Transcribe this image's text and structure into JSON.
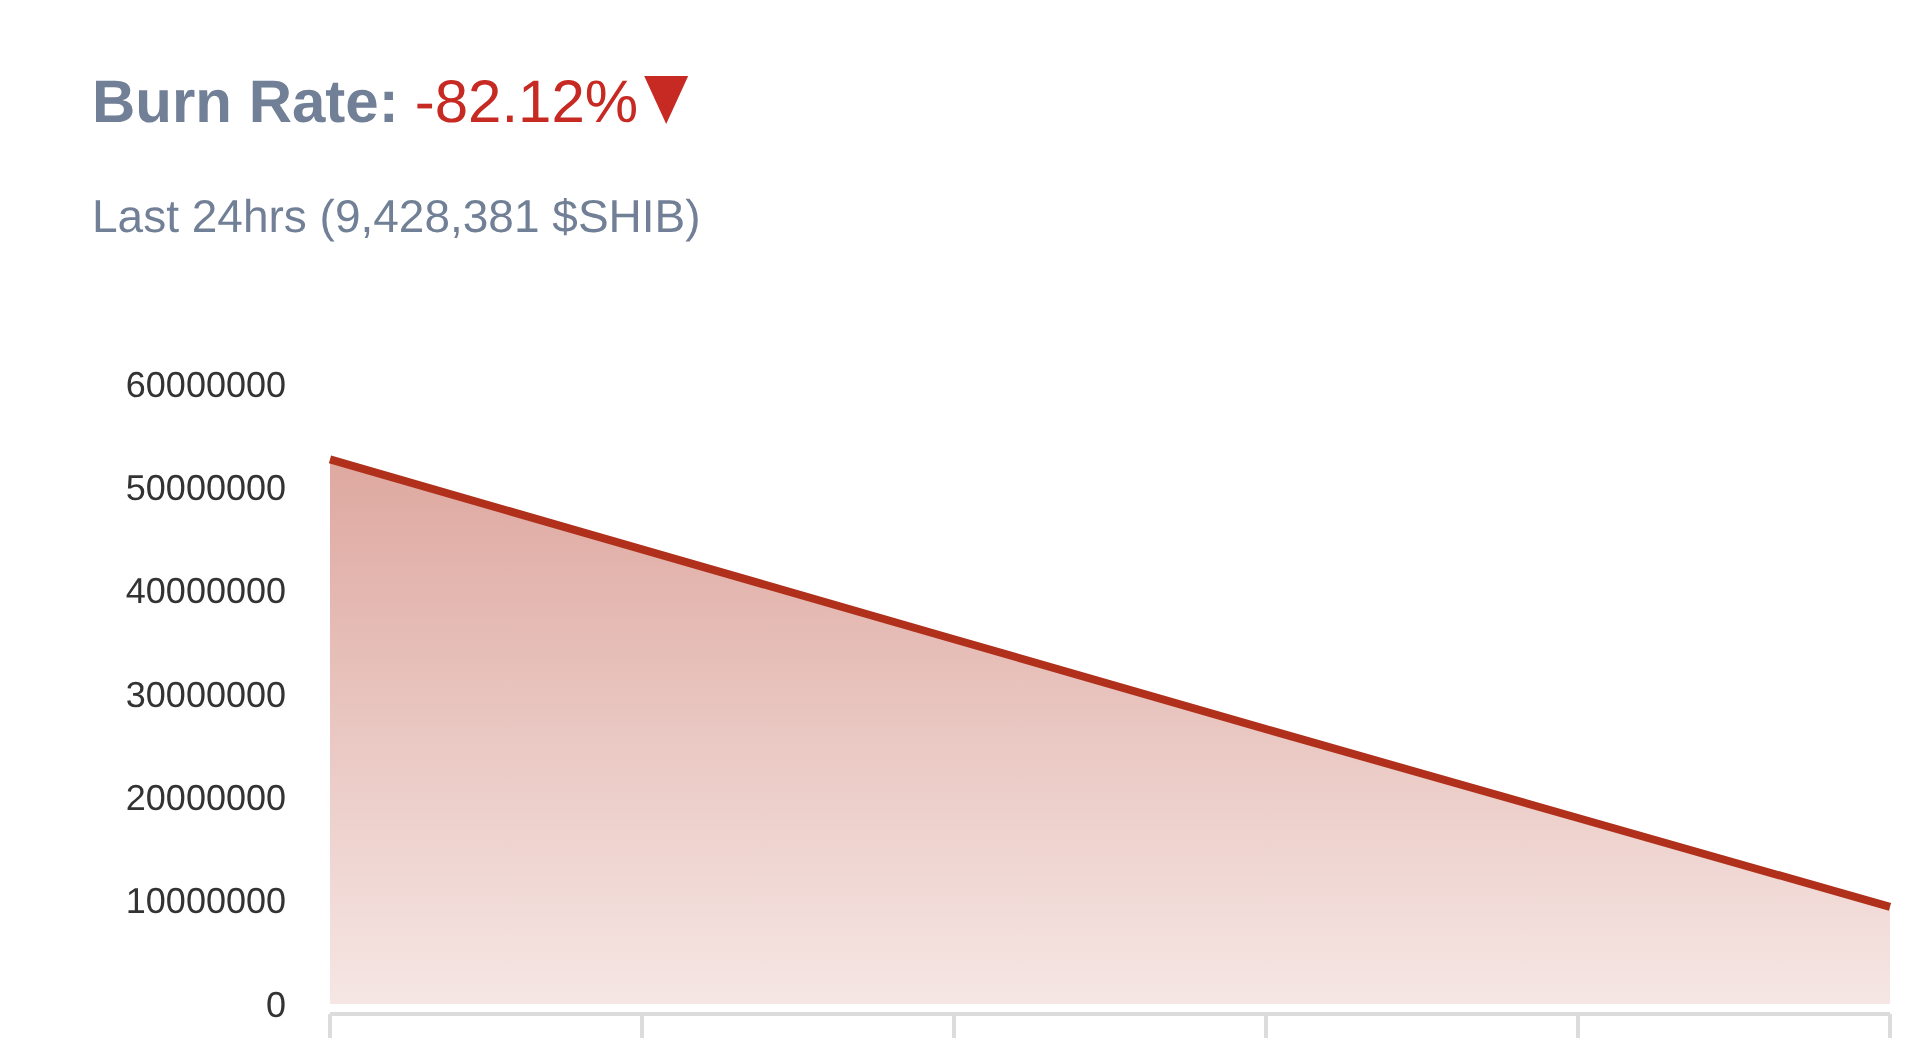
{
  "chart_data": {
    "type": "area",
    "title": "Burn Rate:",
    "subtitle": "Last 24hrs (9,428,381 $SHIB)",
    "annotations": [
      "-82.12%"
    ],
    "categories": [
      null,
      null,
      null,
      null,
      null,
      null
    ],
    "series": [
      {
        "color": "#b0301c",
        "values": [
          52700000,
          44000000,
          35300000,
          26600000,
          18000000,
          9400000
        ]
      }
    ],
    "ylim": [
      0,
      60000000
    ],
    "yticks": [
      0,
      10000000,
      20000000,
      30000000,
      40000000,
      50000000,
      60000000
    ]
  }
}
